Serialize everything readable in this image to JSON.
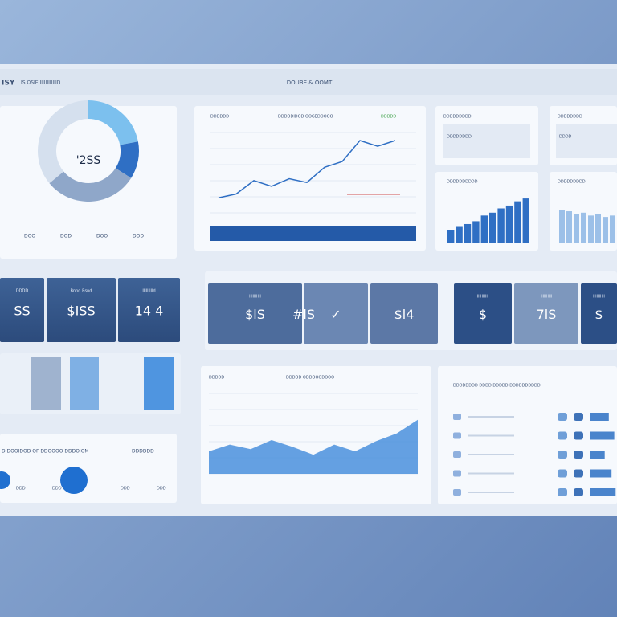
{
  "header": {
    "logo": "ISY",
    "left": "IS OSIE IIIIIIIIIIIID",
    "title": "DOUBE & OOMT"
  },
  "donut": {
    "center": "'2SS",
    "segments": [
      22,
      12,
      30,
      36
    ],
    "colors": [
      "#7cc0ee",
      "#2f6fc4",
      "#8fa7c9",
      "#d5e0ee"
    ],
    "labels": [
      "DOO",
      "DOD",
      "DOO",
      "DOD"
    ]
  },
  "line_panel": {
    "title": "DDDDDD",
    "subtitle": "DDDODIDOD OOGEDOOOO",
    "badge": "DDDDD",
    "values": [
      20,
      24,
      38,
      32,
      40,
      36,
      52,
      58,
      80,
      74,
      80
    ],
    "color": "#2f6fc4"
  },
  "small_panels": [
    {
      "title": "DDDDDDDDD",
      "label": "DDDDDDDD"
    },
    {
      "title": "DDDDDDDD",
      "label": "DDDD"
    }
  ],
  "bar_panels": [
    {
      "title": "DDDDDDDDDD",
      "values": [
        18,
        22,
        26,
        30,
        38,
        42,
        48,
        52,
        58,
        62
      ],
      "color": "#2f6fc4"
    },
    {
      "title": "DDDDDDDDD",
      "values": [
        46,
        44,
        40,
        42,
        38,
        40,
        36,
        38
      ],
      "color": "#9cc0e8"
    }
  ],
  "kpi_left": [
    {
      "label": "DDDD",
      "value": "SS"
    },
    {
      "label": "Bnnd Bsnd",
      "value": "$ISS"
    },
    {
      "label": "IIlIIIIIId",
      "value": "14 4"
    }
  ],
  "kpi_right": [
    {
      "label": "IIIIIIIIII",
      "value": "$lS"
    },
    {
      "label": "",
      "value": "✓"
    },
    {
      "label": "",
      "value": "#lS"
    },
    {
      "label": "",
      "value": "$l4"
    },
    {
      "label": "IIIIIIIIII",
      "value": "$"
    },
    {
      "label": "IIIIIIIIII",
      "value": "7lS"
    },
    {
      "label": "IIIIIIIIII",
      "value": "$"
    }
  ],
  "bottom_left": {
    "title": "D DOOIDOD OF DDOOOO DDDOIOM",
    "side": "DDDDDD",
    "labels": [
      "DDD",
      "DDD",
      "DDD",
      "DDD"
    ]
  },
  "area_panel": {
    "title": "DDDDD",
    "subtitle": "DDDOD ODDOOODOOO",
    "values": [
      40,
      52,
      44,
      60,
      48,
      34,
      52,
      40,
      58,
      72,
      96
    ],
    "color": "#4a90dd"
  },
  "list_panel": {
    "title": "DDDDDDDD DDDD DDDDD DDDDDDDDDD",
    "rows": [
      70,
      90,
      55,
      80,
      95
    ],
    "color": "#4a84cc"
  }
}
